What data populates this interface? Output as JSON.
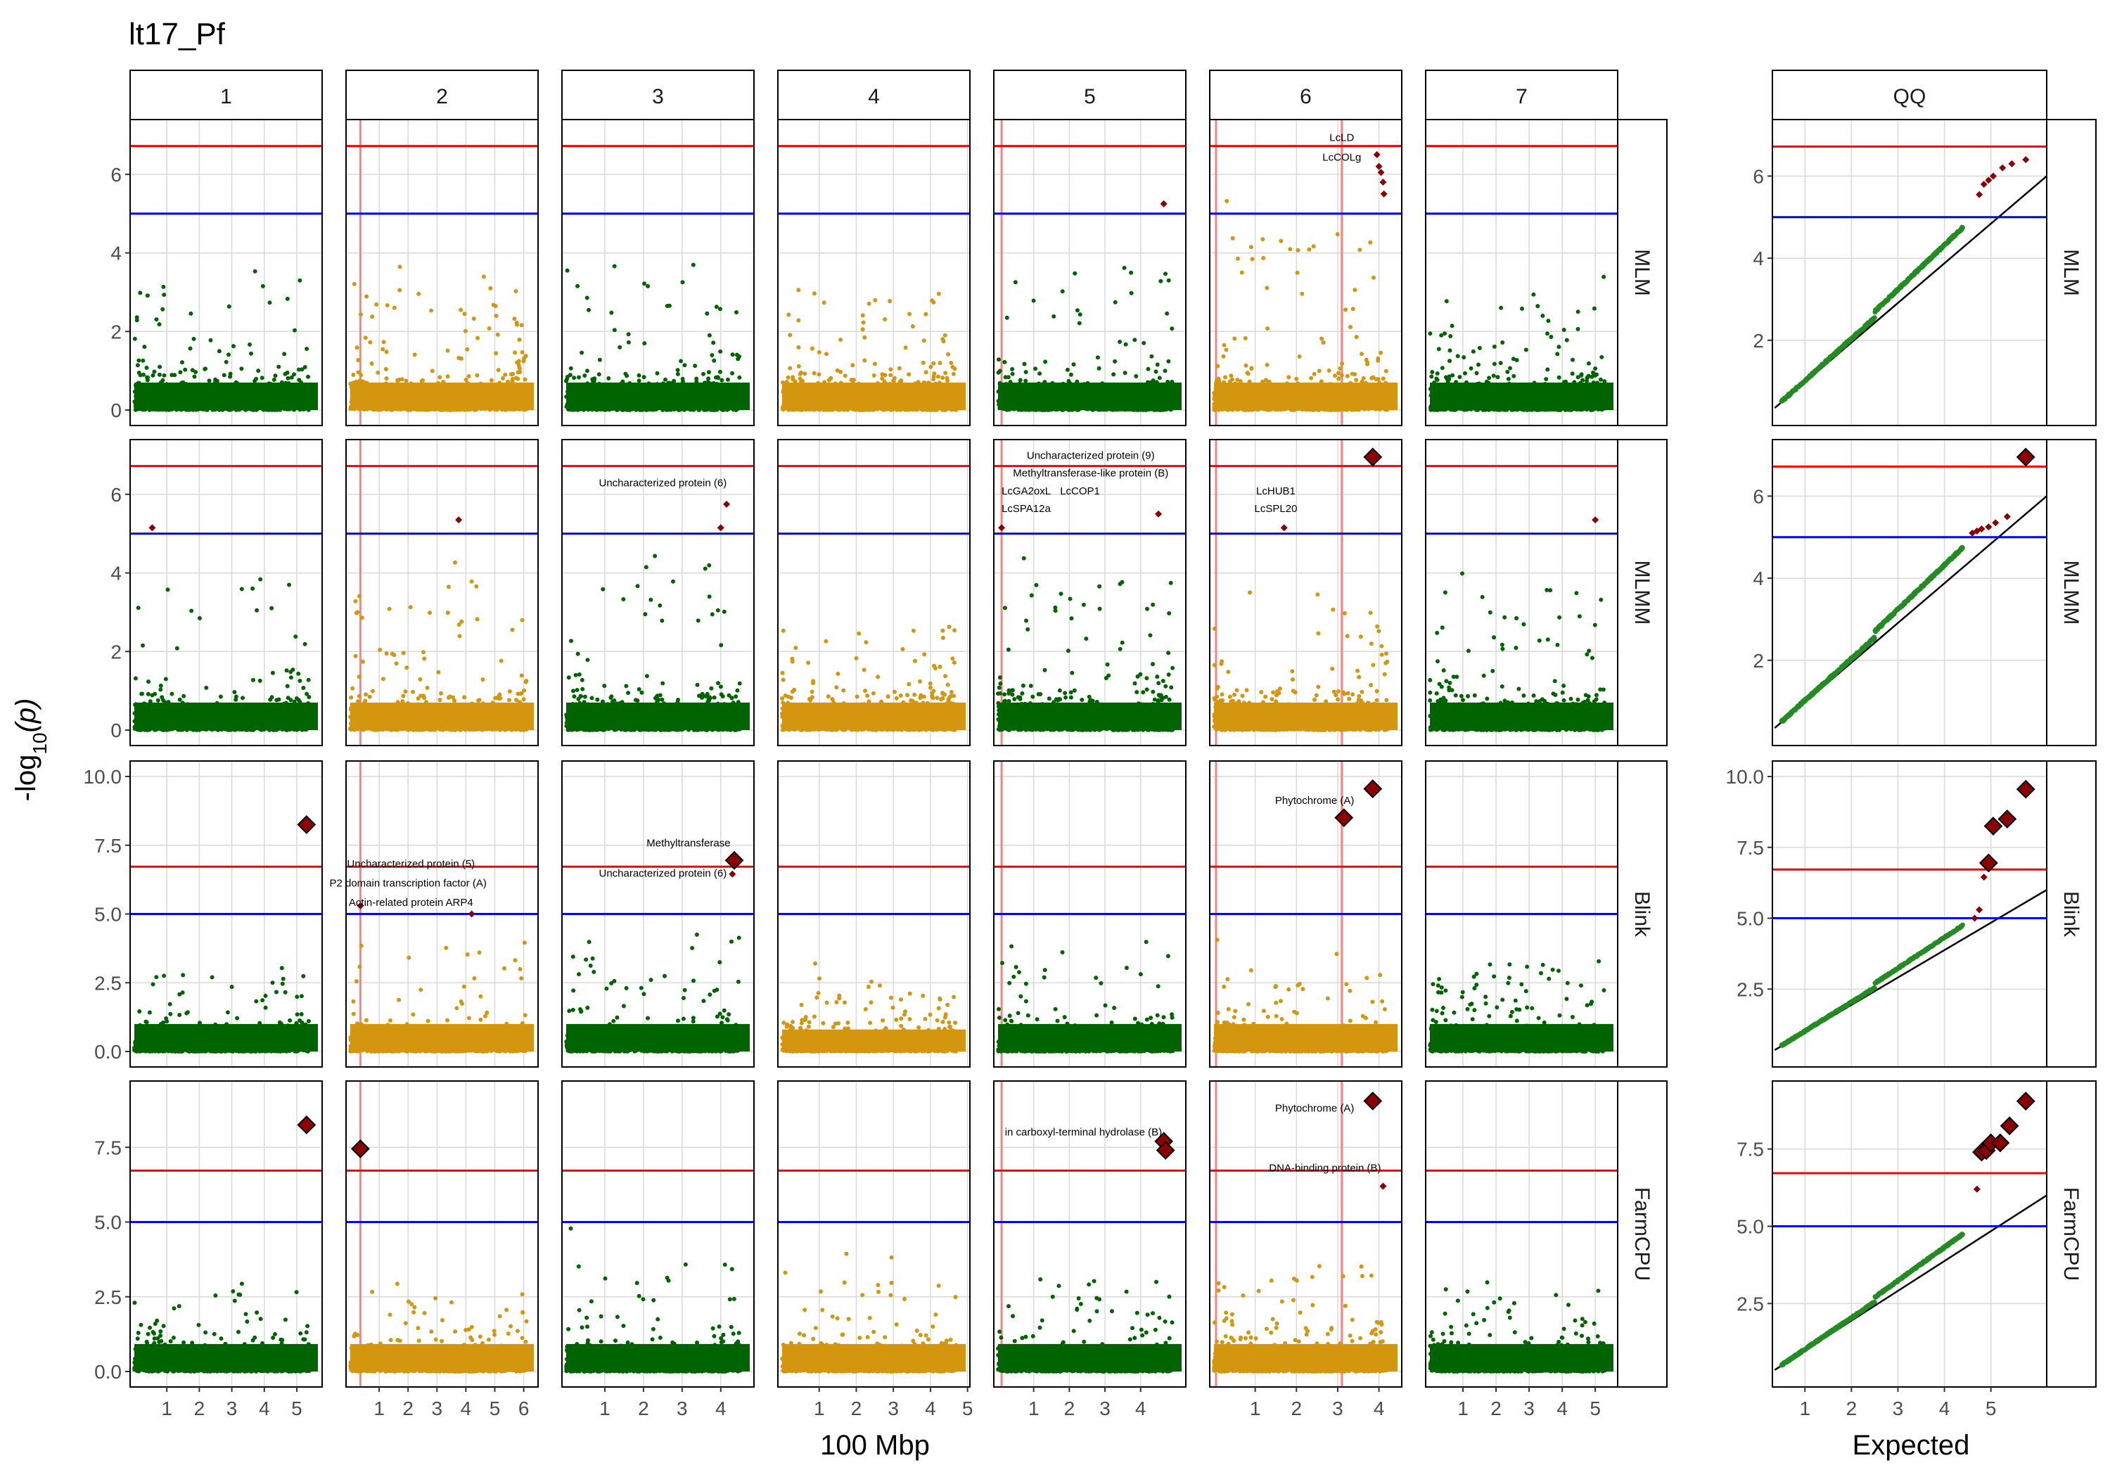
{
  "title": "lt17_Pf",
  "xlabel_manhattan": "100 Mbp",
  "xlabel_qq": "Expected",
  "ylabel_prefix": "-log",
  "ylabel_sub": "10",
  "ylabel_suffix": "(p)",
  "colors": {
    "odd_chr": "#006400",
    "even_chr": "#d4960e",
    "significant": "#8b0000",
    "bonferroni_line": "#ff0000",
    "suggestive_line": "#0000ff",
    "candidate_vline": "#ff8080",
    "qq_points": "#228b22",
    "grid": "#d9d9d9"
  },
  "chart_data": {
    "type": "scatter",
    "columns": [
      "1",
      "2",
      "3",
      "4",
      "5",
      "6",
      "7"
    ],
    "qq_column": "QQ",
    "rows": [
      "MLM",
      "MLMM",
      "Blink",
      "FarmCPU"
    ],
    "thresholds": {
      "bonferroni": 6.72,
      "suggestive": 5.0
    },
    "chromosome_lengths": [
      5.4,
      6.1,
      4.5,
      4.7,
      4.9,
      4.2,
      5.3
    ],
    "chromosome_ticks": {
      "1": [
        "1",
        "2",
        "3",
        "4",
        "5"
      ],
      "2": [
        "1",
        "2",
        "3",
        "4",
        "5",
        "6"
      ],
      "3": [
        "1",
        "2",
        "3",
        "4"
      ],
      "4": [
        "1",
        "2",
        "3",
        "4",
        "5"
      ],
      "5": [
        "1",
        "2",
        "3",
        "4"
      ],
      "6": [
        "1",
        "2",
        "3",
        "4"
      ],
      "7": [
        "1",
        "2",
        "3",
        "4",
        "5"
      ]
    },
    "candidate_lines": {
      "2": [
        0.35
      ],
      "5": [
        0.1
      ],
      "6": [
        0.05,
        3.1
      ]
    },
    "row_ylim": {
      "MLM": [
        0,
        7
      ],
      "MLMM": [
        0,
        7
      ],
      "Blink": [
        0,
        10
      ],
      "FarmCPU": [
        0,
        9.2
      ]
    },
    "row_yticks": {
      "MLM": [
        "0",
        "2",
        "4",
        "6"
      ],
      "MLMM": [
        "0",
        "2",
        "4",
        "6"
      ],
      "Blink": [
        "0.0",
        "2.5",
        "5.0",
        "7.5",
        "10.0"
      ],
      "FarmCPU": [
        "0.0",
        "2.5",
        "5.0",
        "7.5"
      ]
    },
    "qq_yticks": {
      "MLM": [
        "2",
        "4",
        "6"
      ],
      "MLMM": [
        "2",
        "4",
        "6"
      ],
      "Blink": [
        "2.5",
        "5.0",
        "7.5",
        "10.0"
      ],
      "FarmCPU": [
        "2.5",
        "5.0",
        "7.5"
      ]
    },
    "qq_xticks": [
      "1",
      "2",
      "3",
      "4",
      "5"
    ],
    "qq_xlim": [
      0.3,
      6.2
    ],
    "max_expected": 5.8,
    "baseline_peak": {
      "MLM": [
        4.6,
        4.3,
        4.9,
        4.0,
        5.2,
        6.4,
        3.8
      ],
      "MLMM": [
        5.2,
        5.3,
        5.7,
        3.4,
        5.5,
        5.1,
        5.4
      ],
      "Blink": [
        4.8,
        5.0,
        5.0,
        3.2,
        5.0,
        4.8,
        4.5
      ],
      "FarmCPU": [
        4.1,
        4.2,
        4.9,
        4.4,
        4.0,
        4.6,
        4.0
      ]
    },
    "significant_snps": [
      {
        "row": "MLM",
        "chr": "5",
        "pos": 4.65,
        "logp": 5.25,
        "big": false
      },
      {
        "row": "MLM",
        "chr": "6",
        "pos": 3.95,
        "logp": 6.5,
        "big": false
      },
      {
        "row": "MLM",
        "chr": "6",
        "pos": 4.0,
        "logp": 6.2,
        "big": false
      },
      {
        "row": "MLM",
        "chr": "6",
        "pos": 4.05,
        "logp": 6.05,
        "big": false
      },
      {
        "row": "MLM",
        "chr": "6",
        "pos": 4.1,
        "logp": 5.8,
        "big": false
      },
      {
        "row": "MLM",
        "chr": "6",
        "pos": 4.12,
        "logp": 5.5,
        "big": false
      },
      {
        "row": "MLMM",
        "chr": "1",
        "pos": 0.55,
        "logp": 5.15,
        "big": false
      },
      {
        "row": "MLMM",
        "chr": "2",
        "pos": 3.75,
        "logp": 5.35,
        "big": false
      },
      {
        "row": "MLMM",
        "chr": "3",
        "pos": 4.15,
        "logp": 5.75,
        "big": false
      },
      {
        "row": "MLMM",
        "chr": "3",
        "pos": 4.0,
        "logp": 5.15,
        "big": false
      },
      {
        "row": "MLMM",
        "chr": "5",
        "pos": 0.1,
        "logp": 5.15,
        "big": false
      },
      {
        "row": "MLMM",
        "chr": "5",
        "pos": 4.5,
        "logp": 5.5,
        "big": false
      },
      {
        "row": "MLMM",
        "chr": "6",
        "pos": 3.85,
        "logp": 6.95,
        "big": true
      },
      {
        "row": "MLMM",
        "chr": "6",
        "pos": 1.7,
        "logp": 5.15,
        "big": false
      },
      {
        "row": "MLMM",
        "chr": "7",
        "pos": 5.0,
        "logp": 5.35,
        "big": false
      },
      {
        "row": "Blink",
        "chr": "1",
        "pos": 5.3,
        "logp": 8.25,
        "big": true
      },
      {
        "row": "Blink",
        "chr": "2",
        "pos": 0.35,
        "logp": 5.3,
        "big": false
      },
      {
        "row": "Blink",
        "chr": "2",
        "pos": 4.2,
        "logp": 5.0,
        "big": false
      },
      {
        "row": "Blink",
        "chr": "3",
        "pos": 4.35,
        "logp": 6.95,
        "big": true
      },
      {
        "row": "Blink",
        "chr": "3",
        "pos": 4.3,
        "logp": 6.45,
        "big": false
      },
      {
        "row": "Blink",
        "chr": "6",
        "pos": 3.85,
        "logp": 9.55,
        "big": true
      },
      {
        "row": "Blink",
        "chr": "6",
        "pos": 3.15,
        "logp": 8.5,
        "big": true
      },
      {
        "row": "FarmCPU",
        "chr": "1",
        "pos": 5.3,
        "logp": 8.25,
        "big": true
      },
      {
        "row": "FarmCPU",
        "chr": "2",
        "pos": 0.35,
        "logp": 7.45,
        "big": true
      },
      {
        "row": "FarmCPU",
        "chr": "5",
        "pos": 4.65,
        "logp": 7.7,
        "big": true
      },
      {
        "row": "FarmCPU",
        "chr": "5",
        "pos": 4.7,
        "logp": 7.4,
        "big": true
      },
      {
        "row": "FarmCPU",
        "chr": "6",
        "pos": 3.85,
        "logp": 9.05,
        "big": true
      },
      {
        "row": "FarmCPU",
        "chr": "6",
        "pos": 4.1,
        "logp": 6.2,
        "big": false
      }
    ],
    "annotations": [
      {
        "row": "MLM",
        "chr": "6",
        "x": 3.1,
        "y": 6.85,
        "anchor": "middle",
        "text": "LcLD"
      },
      {
        "row": "MLM",
        "chr": "6",
        "x": 3.1,
        "y": 6.35,
        "anchor": "middle",
        "text": "LcCOLg"
      },
      {
        "row": "MLMM",
        "chr": "3",
        "x": 2.5,
        "y": 6.2,
        "anchor": "middle",
        "text": "Uncharacterized protein (6)"
      },
      {
        "row": "MLMM",
        "chr": "5",
        "x": 2.6,
        "y": 6.9,
        "anchor": "middle",
        "text": "Uncharacterized protein (9)"
      },
      {
        "row": "MLMM",
        "chr": "5",
        "x": 2.6,
        "y": 6.45,
        "anchor": "middle",
        "text": "Methyltransferase-like protein (B)"
      },
      {
        "row": "MLMM",
        "chr": "5",
        "x": 0.1,
        "y": 6.0,
        "anchor": "start",
        "text": "LcGA2oxL"
      },
      {
        "row": "MLMM",
        "chr": "5",
        "x": 0.1,
        "y": 5.55,
        "anchor": "start",
        "text": "LcSPA12a"
      },
      {
        "row": "MLMM",
        "chr": "5",
        "x": 2.3,
        "y": 6.0,
        "anchor": "middle",
        "text": "LcCOP1"
      },
      {
        "row": "MLMM",
        "chr": "6",
        "x": 1.5,
        "y": 6.0,
        "anchor": "middle",
        "text": "LcHUB1"
      },
      {
        "row": "MLMM",
        "chr": "6",
        "x": 1.5,
        "y": 5.55,
        "anchor": "middle",
        "text": "LcSPL20"
      },
      {
        "row": "Blink",
        "chr": "2",
        "x": 2.1,
        "y": 6.7,
        "anchor": "middle",
        "text": "Uncharacterized protein (5)"
      },
      {
        "row": "Blink",
        "chr": "2",
        "x": 2.0,
        "y": 6.0,
        "anchor": "middle",
        "text": "P2 domain transcription factor (A)"
      },
      {
        "row": "Blink",
        "chr": "2",
        "x": 2.1,
        "y": 5.3,
        "anchor": "middle",
        "text": "Actin-related protein ARP4"
      },
      {
        "row": "Blink",
        "chr": "3",
        "x": 4.25,
        "y": 7.45,
        "anchor": "end",
        "text": "Methyltransferase"
      },
      {
        "row": "Blink",
        "chr": "3",
        "x": 2.5,
        "y": 6.35,
        "anchor": "middle",
        "text": "Uncharacterized protein (6)"
      },
      {
        "row": "Blink",
        "chr": "6",
        "x": 3.4,
        "y": 9.0,
        "anchor": "end",
        "text": "Phytochrome (A)"
      },
      {
        "row": "FarmCPU",
        "chr": "5",
        "x": 4.6,
        "y": 7.9,
        "anchor": "end",
        "text": "in carboxyl-terminal hydrolase (B)"
      },
      {
        "row": "FarmCPU",
        "chr": "6",
        "x": 3.4,
        "y": 8.7,
        "anchor": "end",
        "text": "Phytochrome (A)"
      },
      {
        "row": "FarmCPU",
        "chr": "6",
        "x": 4.05,
        "y": 6.7,
        "anchor": "end",
        "text": "DNA-binding protein (B)"
      }
    ],
    "qq_significant": {
      "MLM": [
        [
          4.75,
          5.55
        ],
        [
          4.85,
          5.8
        ],
        [
          4.95,
          5.9
        ],
        [
          5.05,
          6.0
        ],
        [
          5.25,
          6.2
        ],
        [
          5.45,
          6.3
        ],
        [
          5.75,
          6.4
        ]
      ],
      "MLMM": [
        [
          4.6,
          5.1
        ],
        [
          4.7,
          5.15
        ],
        [
          4.8,
          5.2
        ],
        [
          4.95,
          5.25
        ],
        [
          5.1,
          5.35
        ],
        [
          5.35,
          5.5
        ],
        [
          5.75,
          6.95
        ]
      ],
      "Blink": [
        [
          4.65,
          5.0
        ],
        [
          4.75,
          5.3
        ],
        [
          4.85,
          6.45
        ],
        [
          4.95,
          6.95
        ],
        [
          5.05,
          8.25
        ],
        [
          5.35,
          8.5
        ],
        [
          5.75,
          9.55
        ]
      ],
      "FarmCPU": [
        [
          4.7,
          6.2
        ],
        [
          4.8,
          7.4
        ],
        [
          4.9,
          7.45
        ],
        [
          5.0,
          7.7
        ],
        [
          5.2,
          7.7
        ],
        [
          5.4,
          8.25
        ],
        [
          5.75,
          9.05
        ]
      ]
    },
    "qq_big": {
      "MLM": [
        false,
        false,
        false,
        false,
        false,
        false,
        false
      ],
      "MLMM": [
        false,
        false,
        false,
        false,
        false,
        false,
        true
      ],
      "Blink": [
        false,
        false,
        false,
        true,
        true,
        true,
        true
      ],
      "FarmCPU": [
        false,
        true,
        true,
        true,
        true,
        true,
        true
      ]
    }
  }
}
